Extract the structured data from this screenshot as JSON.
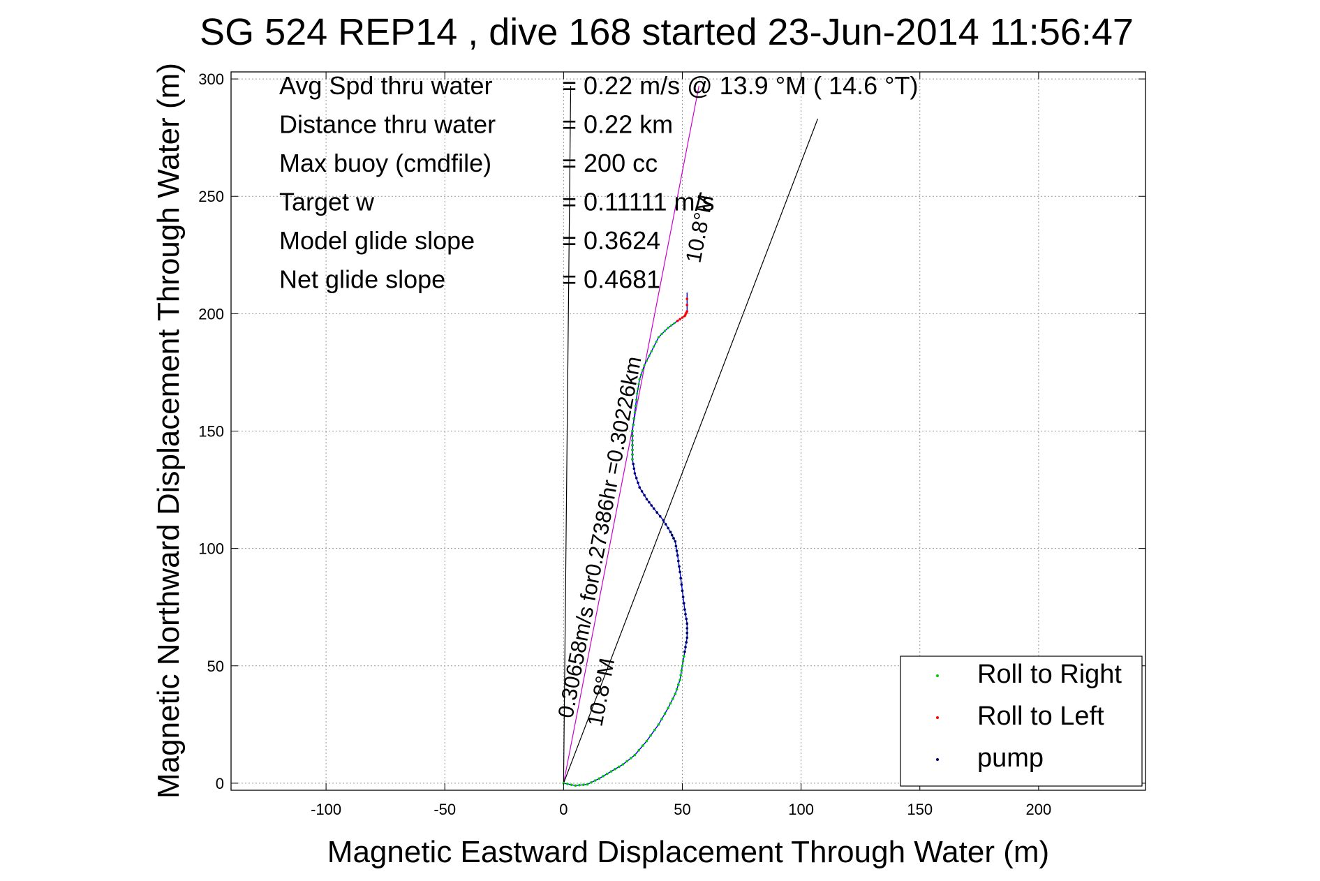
{
  "chart_data": {
    "type": "line",
    "title": "SG 524   REP14  , dive 168 started 23-Jun-2014 11:56:47",
    "xlabel": "Magnetic Eastward Displacement Through Water (m)",
    "ylabel": "Magnetic Northward Displacement Through Water (m)",
    "xlim": [
      -140,
      245
    ],
    "ylim": [
      -3,
      303
    ],
    "x_ticks": [
      -100,
      -50,
      0,
      50,
      100,
      150,
      200
    ],
    "y_ticks": [
      0,
      50,
      100,
      150,
      200,
      250,
      300
    ],
    "grid": true,
    "legend_position": "bottom-right",
    "legend": [
      "Roll to Right",
      "Roll to Left",
      "pump"
    ],
    "stats": [
      {
        "label": "Avg Spd thru water",
        "value": "=  0.22 m/s @  13.9 °M ( 14.6 °T)"
      },
      {
        "label": "Distance thru water",
        "value": "=  0.22 km"
      },
      {
        "label": "Max buoy (cmdfile)",
        "value": "= 200 cc"
      },
      {
        "label": "Target w",
        "value": "= 0.11111 m/s"
      },
      {
        "label": "Model glide slope",
        "value": "= 0.3624"
      },
      {
        "label": "Net glide slope",
        "value": "= 0.4681"
      }
    ],
    "annotations": [
      {
        "text": "0.30658m/s for0.27386hr =0.30226km",
        "angle_deg": 10.8
      },
      {
        "text": "10.8°M",
        "angle_deg": 10.8
      },
      {
        "text": "10.8°M",
        "angle_deg": 10.8
      }
    ],
    "reference_lines": [
      {
        "name": "heading-line",
        "points": [
          [
            0,
            0
          ],
          [
            57,
            297
          ]
        ]
      },
      {
        "name": "slope-line",
        "points": [
          [
            0,
            0
          ],
          [
            107,
            283
          ]
        ]
      },
      {
        "name": "north-line",
        "points": [
          [
            0,
            0
          ],
          [
            3,
            297
          ]
        ]
      }
    ],
    "series": [
      {
        "name": "track",
        "points": [
          [
            0,
            0
          ],
          [
            5,
            -1
          ],
          [
            10,
            -0.5
          ],
          [
            15,
            2
          ],
          [
            20,
            5
          ],
          [
            25,
            8
          ],
          [
            30,
            12
          ],
          [
            35,
            18
          ],
          [
            40,
            25
          ],
          [
            44,
            32
          ],
          [
            47,
            38
          ],
          [
            49,
            44
          ],
          [
            50,
            50
          ],
          [
            51,
            56
          ],
          [
            52,
            62
          ],
          [
            52,
            68
          ],
          [
            51,
            74
          ],
          [
            50,
            82
          ],
          [
            49,
            90
          ],
          [
            48,
            97
          ],
          [
            47,
            103
          ],
          [
            45,
            107
          ],
          [
            42,
            112
          ],
          [
            38,
            117
          ],
          [
            35,
            121
          ],
          [
            32,
            126
          ],
          [
            30,
            132
          ],
          [
            29,
            138
          ],
          [
            29,
            144
          ],
          [
            29,
            150
          ],
          [
            30,
            158
          ],
          [
            31,
            166
          ],
          [
            32,
            172
          ],
          [
            34,
            178
          ],
          [
            37,
            184
          ],
          [
            40,
            190
          ],
          [
            44,
            194
          ],
          [
            48,
            197
          ],
          [
            51,
            199
          ],
          [
            52,
            201
          ],
          [
            52,
            209
          ]
        ]
      },
      {
        "name": "Roll to Right",
        "marker_segment": [
          0,
          23
        ]
      },
      {
        "name": "Roll to Left",
        "marker_segment": [
          37,
          41
        ]
      },
      {
        "name": "pump",
        "marker_segment": [
          13,
          30
        ]
      }
    ],
    "colors": {
      "track": "#0000ff",
      "heading": "#cc00cc",
      "roll_right": "#00cc00",
      "roll_left": "#ff0000",
      "pump": "#000066",
      "reference": "#000000"
    }
  }
}
